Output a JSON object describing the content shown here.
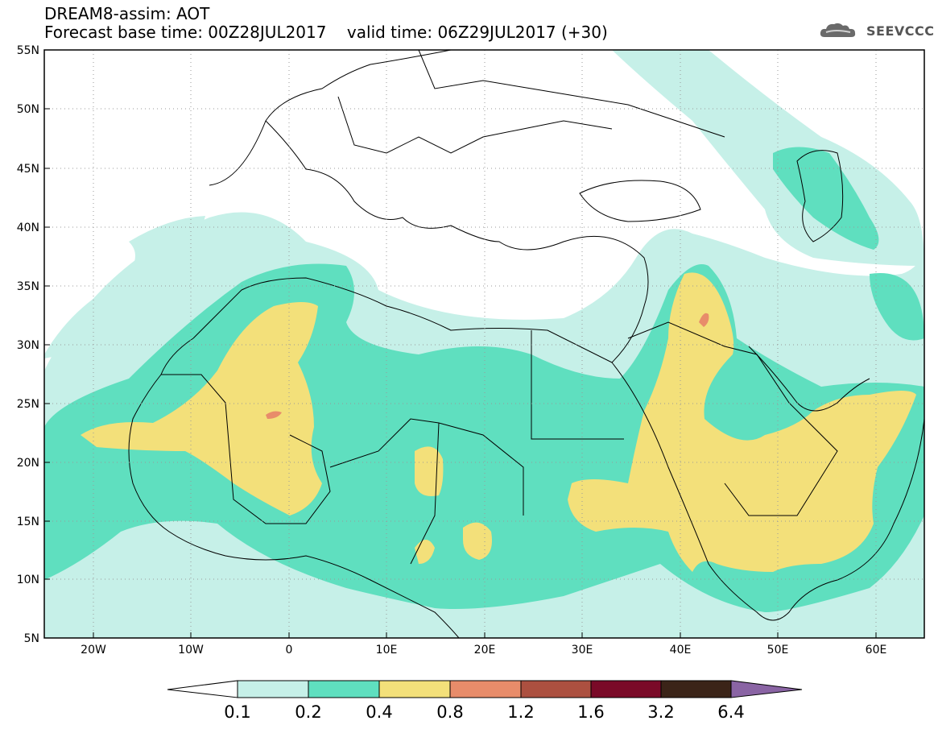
{
  "header": {
    "product": "DREAM8-assim: AOT",
    "base_time": "Forecast base time: 00Z28JUL2017",
    "valid_time": "valid time: 06Z29JUL2017 (+30)"
  },
  "logo": {
    "text": "SEEVCCC",
    "icon": "cloud-icon"
  },
  "map": {
    "lat_ticks": [
      "55N",
      "50N",
      "45N",
      "40N",
      "35N",
      "30N",
      "25N",
      "20N",
      "15N",
      "10N",
      "5N"
    ],
    "lon_ticks": [
      "20W",
      "10W",
      "0",
      "10E",
      "20E",
      "30E",
      "40E",
      "50E",
      "60E"
    ],
    "lat_range": [
      5,
      55
    ],
    "lon_range": [
      -25,
      65
    ]
  },
  "legend": {
    "labels": [
      "0.1",
      "0.2",
      "0.4",
      "0.8",
      "1.2",
      "1.6",
      "3.2",
      "6.4"
    ],
    "colors": [
      "#ffffff",
      "#c6f0e8",
      "#5fdfbf",
      "#f3e07a",
      "#e88c6a",
      "#ac5040",
      "#7a0a28",
      "#3b2418",
      "#8a64a4"
    ]
  }
}
